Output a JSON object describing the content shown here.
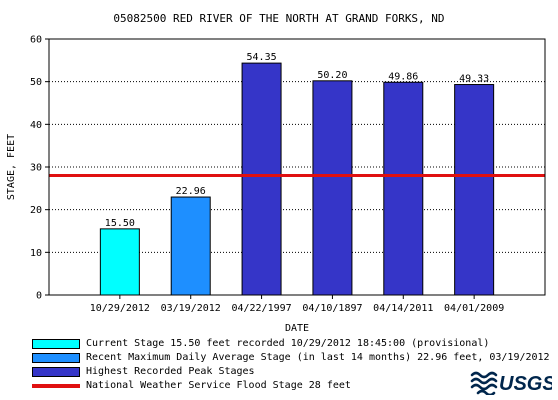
{
  "chart_data": {
    "type": "bar",
    "title": "05082500 RED RIVER OF THE NORTH AT GRAND FORKS, ND",
    "xlabel": "DATE",
    "ylabel": "STAGE, FEET",
    "ylim": [
      0,
      60
    ],
    "yticks": [
      0,
      10,
      20,
      30,
      40,
      50,
      60
    ],
    "grid": true,
    "categories": [
      "10/29/2012",
      "03/19/2012",
      "04/22/1997",
      "04/10/1897",
      "04/14/2011",
      "04/01/2009"
    ],
    "values": [
      15.5,
      22.96,
      54.35,
      50.2,
      49.86,
      49.33
    ],
    "value_labels": [
      "15.50",
      "22.96",
      "54.35",
      "50.20",
      "49.86",
      "49.33"
    ],
    "bar_colors": [
      "#00ffff",
      "#1e8fff",
      "#3535c8",
      "#3535c8",
      "#3535c8",
      "#3535c8"
    ],
    "reference_line": {
      "value": 28,
      "color": "#e01010"
    },
    "legend_placement": "bottom"
  },
  "legend": [
    {
      "label": "Current Stage 15.50 feet recorded 10/29/2012 18:45:00 (provisional)",
      "color": "#00ffff",
      "kind": "box"
    },
    {
      "label": "Recent Maximum Daily Average Stage (in last 14 months) 22.96 feet, 03/19/2012",
      "color": "#1e8fff",
      "kind": "box"
    },
    {
      "label": "Highest Recorded Peak Stages",
      "color": "#3535c8",
      "kind": "box"
    },
    {
      "label": "National Weather Service Flood Stage 28 feet",
      "color": "#e01010",
      "kind": "line"
    }
  ],
  "logo": {
    "text": "USGS",
    "icon": "usgs-wave-icon",
    "color": "#00264c"
  }
}
